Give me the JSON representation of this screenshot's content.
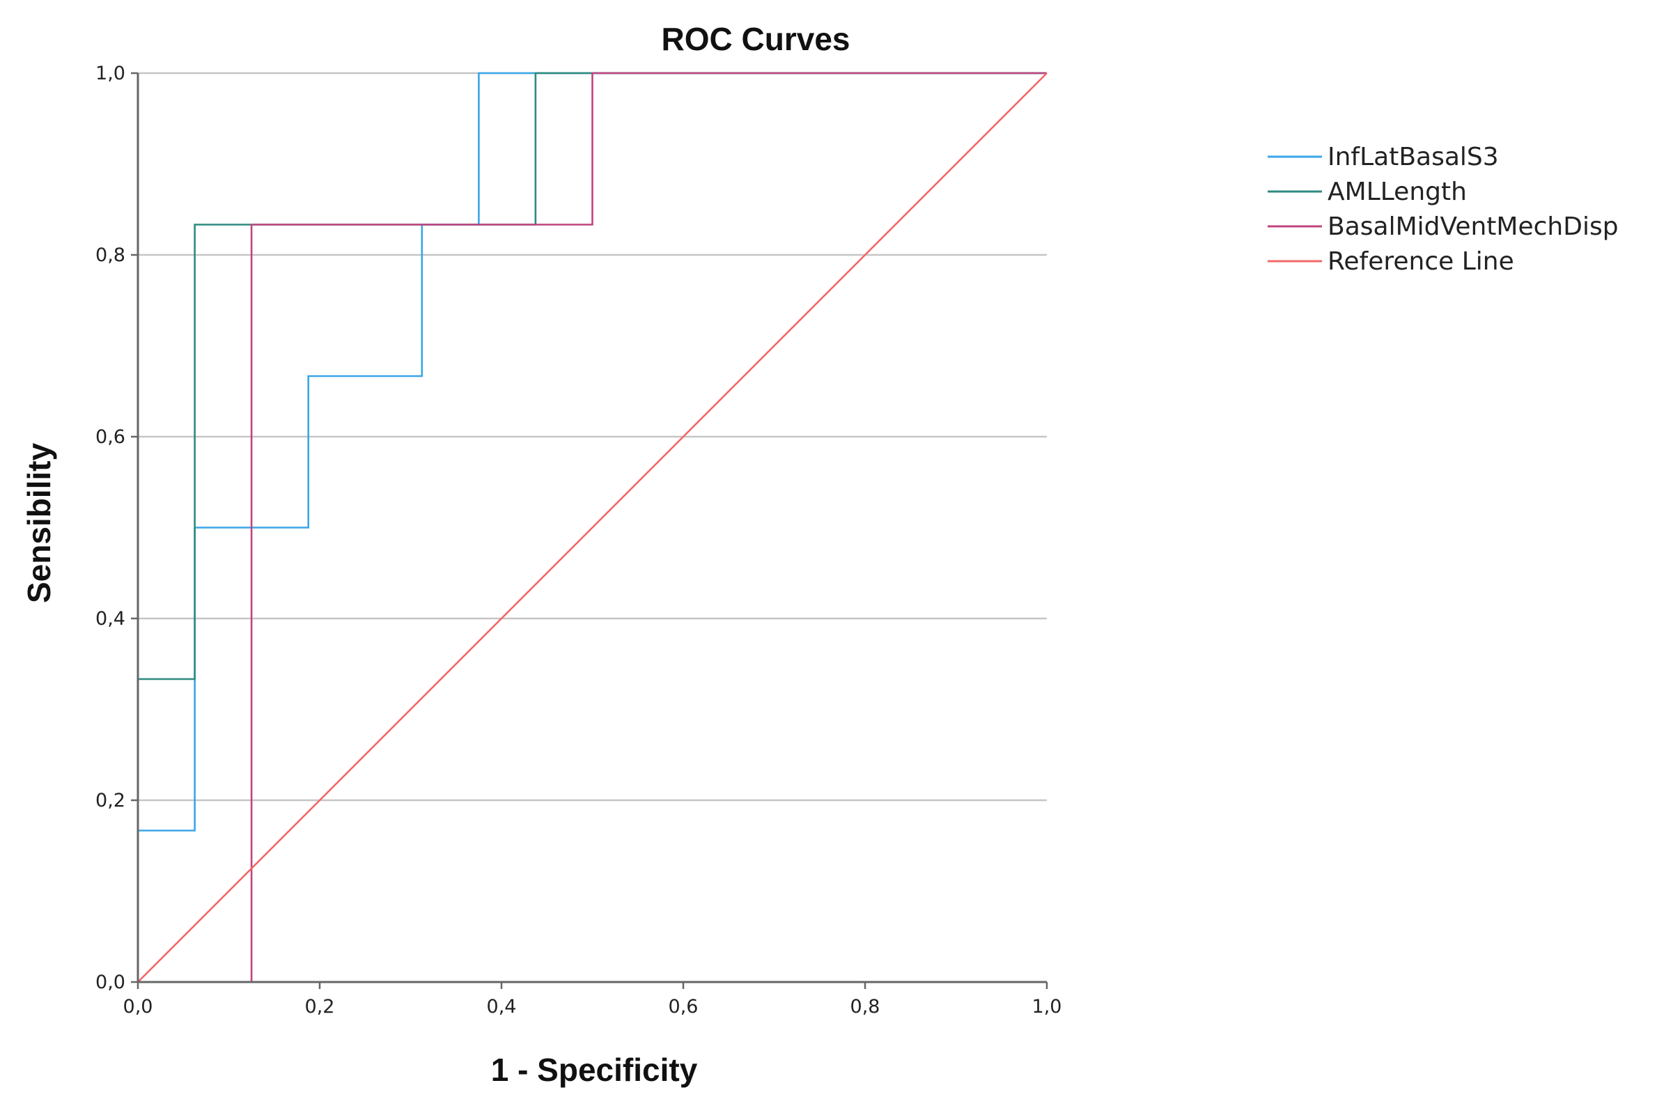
{
  "chart_data": {
    "type": "line",
    "title": "ROC Curves",
    "xlabel": "1 - Specificity",
    "ylabel": "Sensibility",
    "xlim": [
      0,
      1
    ],
    "ylim": [
      0,
      1
    ],
    "grid": "horizontal",
    "x_ticks": [
      "0,0",
      "0,2",
      "0,4",
      "0,6",
      "0,8",
      "1,0"
    ],
    "y_ticks": [
      "0,0",
      "0,2",
      "0,4",
      "0,6",
      "0,8",
      "1,0"
    ],
    "legend_position": "right",
    "series": [
      {
        "name": "InfLatBasalS3",
        "color": "#3aa6e8",
        "x": [
          0,
          0,
          0.0625,
          0.0625,
          0.1875,
          0.1875,
          0.3125,
          0.3125,
          0.375,
          0.375,
          1.0
        ],
        "y": [
          0,
          0.1667,
          0.1667,
          0.5,
          0.5,
          0.6667,
          0.6667,
          0.8333,
          0.8333,
          1.0,
          1.0
        ]
      },
      {
        "name": "AMLLength",
        "color": "#2e8a80",
        "x": [
          0,
          0,
          0.0625,
          0.0625,
          0.4375,
          0.4375,
          1.0
        ],
        "y": [
          0,
          0.3333,
          0.3333,
          0.8333,
          0.8333,
          1.0,
          1.0
        ]
      },
      {
        "name": "BasalMidVentMechDisp",
        "color": "#c0447e",
        "x": [
          0,
          0.125,
          0.125,
          0.5,
          0.5,
          1.0
        ],
        "y": [
          0,
          0,
          0.8333,
          0.8333,
          1.0,
          1.0
        ]
      },
      {
        "name": "Reference Line",
        "color": "#f26868",
        "x": [
          0,
          1
        ],
        "y": [
          0,
          1
        ]
      }
    ]
  }
}
